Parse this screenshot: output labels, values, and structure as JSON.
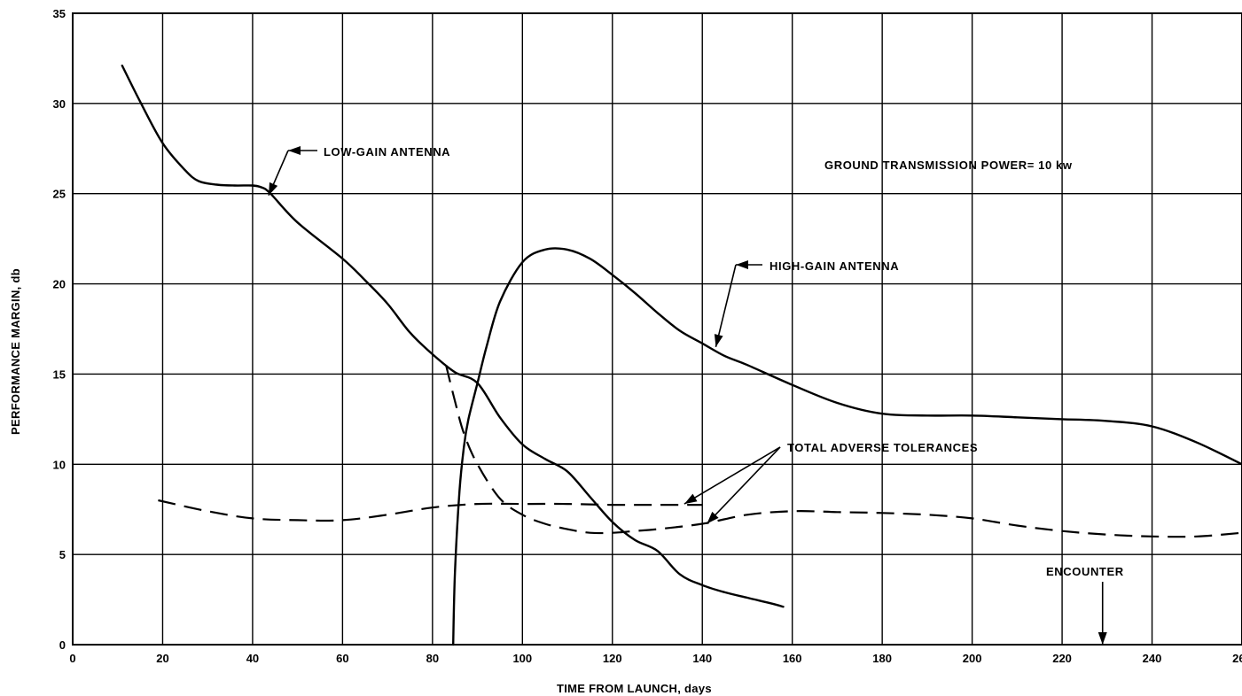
{
  "chart_data": {
    "type": "line",
    "title": "",
    "xlabel": "TIME FROM LAUNCH, days",
    "ylabel": "PERFORMANCE MARGIN, db",
    "xlim": [
      0,
      260
    ],
    "ylim": [
      0,
      35
    ],
    "x_ticks": [
      0,
      20,
      40,
      60,
      80,
      100,
      120,
      140,
      160,
      180,
      200,
      220,
      240,
      260
    ],
    "y_ticks": [
      0,
      5,
      10,
      15,
      20,
      25,
      30,
      35
    ],
    "grid": true,
    "series": [
      {
        "name": "LOW-GAIN ANTENNA",
        "style": "solid",
        "x": [
          11,
          15,
          20,
          25,
          28,
          32,
          36,
          40,
          42,
          44,
          50,
          60,
          65,
          70,
          75,
          80,
          85,
          90,
          95,
          100,
          105,
          110,
          115,
          120,
          125,
          130,
          135,
          140,
          145,
          150,
          155,
          158
        ],
        "y": [
          32.1,
          30.1,
          27.8,
          26.3,
          25.7,
          25.5,
          25.45,
          25.45,
          25.35,
          25.0,
          23.4,
          21.4,
          20.2,
          18.9,
          17.3,
          16.1,
          15.1,
          14.5,
          12.6,
          11.1,
          10.3,
          9.6,
          8.2,
          6.8,
          5.8,
          5.2,
          3.9,
          3.3,
          2.9,
          2.6,
          2.3,
          2.1
        ]
      },
      {
        "name": "HIGH-GAIN ANTENNA",
        "style": "solid",
        "x": [
          84.6,
          85,
          86,
          87,
          88,
          90,
          92,
          95,
          100,
          105,
          110,
          115,
          120,
          125,
          130,
          135,
          140,
          145,
          150,
          160,
          170,
          180,
          190,
          200,
          210,
          220,
          230,
          240,
          250,
          260
        ],
        "y": [
          0,
          4,
          8.5,
          11,
          12.5,
          14.5,
          16.5,
          19,
          21.2,
          21.9,
          21.9,
          21.4,
          20.5,
          19.5,
          18.4,
          17.4,
          16.7,
          16.0,
          15.5,
          14.4,
          13.4,
          12.8,
          12.7,
          12.7,
          12.6,
          12.5,
          12.4,
          12.1,
          11.2,
          10.0
        ]
      },
      {
        "name": "TOTAL ADVERSE TOLERANCES",
        "style": "dashed",
        "x": [
          19,
          30,
          40,
          50,
          60,
          70,
          80,
          90,
          100,
          110,
          120,
          130,
          140
        ],
        "y": [
          8.0,
          7.4,
          7.0,
          6.9,
          6.9,
          7.2,
          7.6,
          7.8,
          7.8,
          7.8,
          7.75,
          7.75,
          7.75
        ]
      },
      {
        "name": "TOTAL ADVERSE TOLERANCES",
        "style": "dashed",
        "x": [
          83,
          85,
          87,
          90,
          95,
          100,
          105,
          110,
          115,
          120,
          125,
          130,
          140,
          150,
          160,
          170,
          180,
          190,
          200,
          210,
          220,
          230,
          240,
          250,
          260
        ],
        "y": [
          15.5,
          13.5,
          11.7,
          10.0,
          8.1,
          7.2,
          6.7,
          6.4,
          6.2,
          6.2,
          6.3,
          6.4,
          6.7,
          7.2,
          7.4,
          7.35,
          7.3,
          7.2,
          7.0,
          6.6,
          6.3,
          6.1,
          6.0,
          6.0,
          6.2
        ]
      }
    ],
    "annotations": {
      "low_gain": "LOW-GAIN ANTENNA",
      "high_gain": "HIGH-GAIN ANTENNA",
      "tolerances": "TOTAL ADVERSE TOLERANCES",
      "power": "GROUND TRANSMISSION POWER= 10 kw",
      "encounter": "ENCOUNTER",
      "encounter_day": 229
    }
  }
}
